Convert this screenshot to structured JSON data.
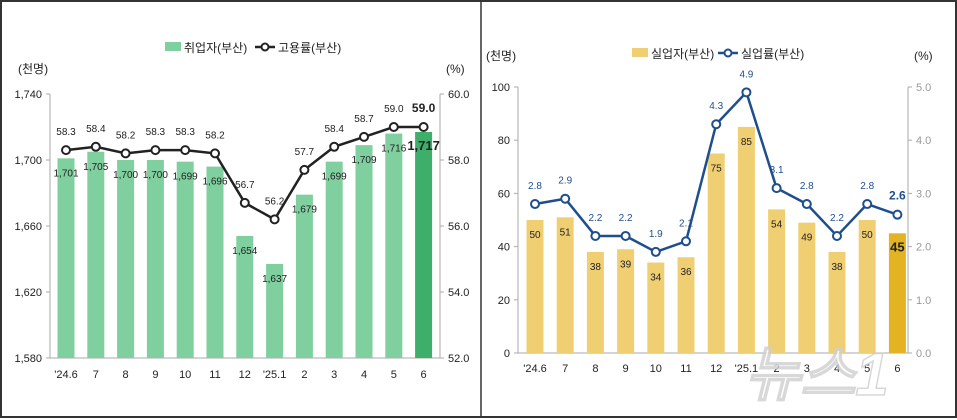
{
  "watermark": "뉴스1",
  "chart_data": [
    {
      "type": "bar+line",
      "categories": [
        "'24.6",
        "7",
        "8",
        "9",
        "10",
        "11",
        "12",
        "'25.1",
        "2",
        "3",
        "4",
        "5",
        "6"
      ],
      "left_unit": "(천명)",
      "right_unit": "(%)",
      "ylim": [
        1580,
        1740
      ],
      "yticks": [
        "1,580",
        "1,620",
        "1,660",
        "1,700",
        "1,740"
      ],
      "y2lim": [
        52,
        60
      ],
      "y2ticks": [
        "52.0",
        "54.0",
        "56.0",
        "58.0",
        "60.0"
      ],
      "series": [
        {
          "name": "취업자(부산)",
          "type": "bar",
          "color": "#7fcf9f",
          "highlight_color": "#3daf6a",
          "values": [
            1701,
            1705,
            1700,
            1700,
            1699,
            1696,
            1654,
            1637,
            1679,
            1699,
            1709,
            1716,
            1717
          ],
          "labels": [
            "1,701",
            "1,705",
            "1,700",
            "1,700",
            "1,699",
            "1,696",
            "1,654",
            "1,637",
            "1,679",
            "1,699",
            "1,709",
            "1,716",
            "1,717"
          ]
        },
        {
          "name": "고용률(부산)",
          "type": "line",
          "color": "#222222",
          "values": [
            58.3,
            58.4,
            58.2,
            58.3,
            58.3,
            58.2,
            56.7,
            56.2,
            57.7,
            58.4,
            58.7,
            59.0,
            59.0
          ],
          "labels": [
            "58.3",
            "58.4",
            "58.2",
            "58.3",
            "58.3",
            "58.2",
            "56.7",
            "56.2",
            "57.7",
            "58.4",
            "58.7",
            "59.0",
            "59.0"
          ]
        }
      ]
    },
    {
      "type": "bar+line",
      "categories": [
        "'24.6",
        "7",
        "8",
        "9",
        "10",
        "11",
        "12",
        "'25.1",
        "2",
        "3",
        "4",
        "5",
        "6"
      ],
      "left_unit": "(천명)",
      "right_unit": "(%)",
      "ylim": [
        0,
        100
      ],
      "yticks": [
        "0",
        "20",
        "40",
        "60",
        "80",
        "100"
      ],
      "y2lim": [
        0,
        5
      ],
      "y2ticks": [
        "0.0",
        "1.0",
        "2.0",
        "3.0",
        "4.0",
        "5.0"
      ],
      "series": [
        {
          "name": "실업자(부산)",
          "type": "bar",
          "color": "#f0cf72",
          "highlight_color": "#e3b323",
          "values": [
            50,
            51,
            38,
            39,
            34,
            36,
            75,
            85,
            54,
            49,
            38,
            50,
            45
          ],
          "labels": [
            "50",
            "51",
            "38",
            "39",
            "34",
            "36",
            "75",
            "85",
            "54",
            "49",
            "38",
            "50",
            "45"
          ]
        },
        {
          "name": "실업률(부산)",
          "type": "line",
          "color": "#1f4e8c",
          "values": [
            2.8,
            2.9,
            2.2,
            2.2,
            1.9,
            2.1,
            4.3,
            4.9,
            3.1,
            2.8,
            2.2,
            2.8,
            2.6
          ],
          "labels": [
            "2.8",
            "2.9",
            "2.2",
            "2.2",
            "1.9",
            "2.1",
            "4.3",
            "4.9",
            "3.1",
            "2.8",
            "2.2",
            "2.8",
            "2.6"
          ]
        }
      ]
    }
  ]
}
